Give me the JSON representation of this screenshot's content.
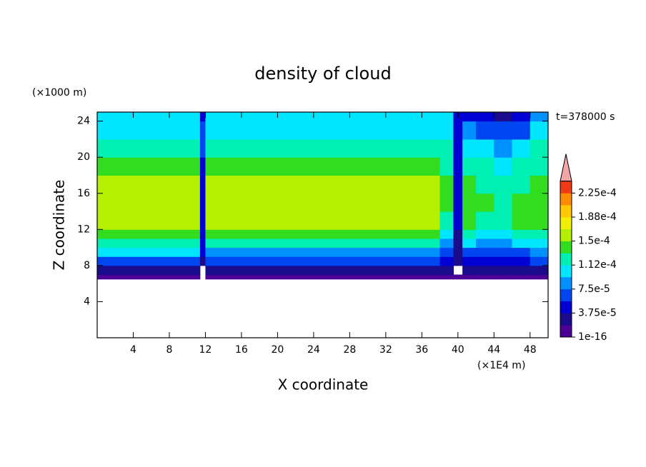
{
  "chart_data": {
    "type": "contour",
    "title": "density of cloud",
    "x_label": "X coordinate",
    "y_label": "Z coordinate",
    "x_unit": "(×1E4 m)",
    "y_unit": "(×1000 m)",
    "annotation": "t=378000 s",
    "xlim": [
      0,
      50
    ],
    "ylim": [
      0,
      25
    ],
    "xticks": [
      4,
      8,
      12,
      16,
      20,
      24,
      28,
      32,
      36,
      40,
      44,
      48
    ],
    "yticks": [
      4,
      8,
      12,
      16,
      20,
      24
    ],
    "x_edges": [
      0,
      11.4,
      12,
      38,
      39.5,
      40.5,
      42,
      44,
      46,
      48,
      50
    ],
    "z_edges": [
      6.5,
      7,
      8,
      9,
      10,
      11,
      12,
      14,
      16,
      18,
      20,
      22,
      24,
      25
    ],
    "values": [
      [
        1e-05,
        null,
        1e-05,
        1e-05,
        1e-05,
        1e-05,
        1e-05,
        1e-05,
        1e-05,
        1e-05
      ],
      [
        3e-05,
        null,
        3e-05,
        3e-05,
        null,
        3e-05,
        3e-05,
        3e-05,
        3e-05,
        3e-05
      ],
      [
        7e-05,
        3e-05,
        6e-05,
        4e-05,
        3e-05,
        4e-05,
        5e-05,
        4e-05,
        5e-05,
        6e-05
      ],
      [
        0.0001,
        4e-05,
        9e-05,
        6e-05,
        3e-05,
        6e-05,
        7e-05,
        6e-05,
        7e-05,
        9e-05
      ],
      [
        0.000125,
        4e-05,
        0.00012,
        8e-05,
        3e-05,
        0.0001,
        9e-05,
        8e-05,
        0.0001,
        0.00011
      ],
      [
        0.00014,
        5e-05,
        0.00014,
        0.0001,
        3e-05,
        0.00012,
        0.00011,
        0.0001,
        0.00012,
        0.000125
      ],
      [
        0.000155,
        5e-05,
        0.00016,
        0.00013,
        4e-05,
        0.00014,
        0.00013,
        0.000125,
        0.00014,
        0.00014
      ],
      [
        0.00016,
        5e-05,
        0.00016,
        0.000145,
        4e-05,
        0.000145,
        0.000135,
        0.00012,
        0.00014,
        0.000145
      ],
      [
        0.000155,
        5e-05,
        0.000155,
        0.000145,
        4e-05,
        0.000135,
        0.00013,
        0.00012,
        0.00013,
        0.000135
      ],
      [
        0.00014,
        5e-05,
        0.00014,
        0.00013,
        5e-05,
        0.000125,
        0.00012,
        0.000105,
        0.000115,
        0.000125
      ],
      [
        0.00012,
        6e-05,
        0.00012,
        0.00012,
        5e-05,
        0.00011,
        0.0001,
        9e-05,
        0.0001,
        0.000115
      ],
      [
        0.000105,
        6e-05,
        0.000105,
        0.000105,
        5e-05,
        8e-05,
        7e-05,
        6e-05,
        7e-05,
        0.0001
      ],
      [
        9.5e-05,
        4e-05,
        0.0001,
        0.0001,
        4e-05,
        5e-05,
        4e-05,
        3e-05,
        4e-05,
        8e-05
      ]
    ],
    "levels": [
      1e-16,
      1.875e-05,
      3.75e-05,
      5.625e-05,
      7.5e-05,
      9.375e-05,
      0.000112,
      0.000131,
      0.00015,
      0.000169,
      0.000188,
      0.000206,
      0.000225,
      0.000244
    ],
    "level_colors": [
      "#4b0096",
      "#1a0a8c",
      "#0000d2",
      "#0046f0",
      "#0090ff",
      "#00e6ff",
      "#00f0b4",
      "#32dc1e",
      "#b4f000",
      "#f0f000",
      "#ffc800",
      "#ff8c00",
      "#f03c14"
    ],
    "extend_color": "#f4a6a6",
    "colorbar_ticks": [
      {
        "value": 1e-16,
        "label": "1e-16"
      },
      {
        "value": 3.75e-05,
        "label": "3.75e-5"
      },
      {
        "value": 7.5e-05,
        "label": "7.5e-5"
      },
      {
        "value": 0.000112,
        "label": "1.12e-4"
      },
      {
        "value": 0.00015,
        "label": "1.5e-4"
      },
      {
        "value": 0.000188,
        "label": "1.88e-4"
      },
      {
        "value": 0.000225,
        "label": "2.25e-4"
      }
    ]
  }
}
